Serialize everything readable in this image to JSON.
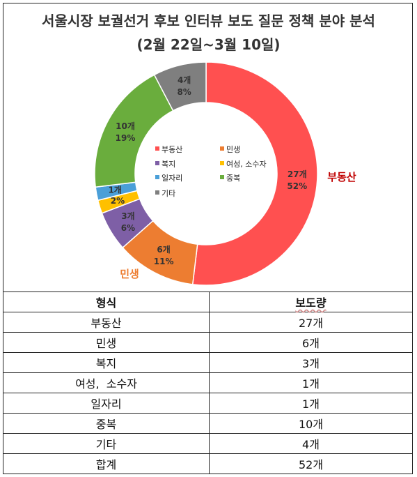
{
  "title_line1": "서울시장 보궐선거 후보 인터뷰 보도 질문 정책 분야 분석",
  "title_line2": "(2월 22일~3월 10일)",
  "chart_data": {
    "type": "pie",
    "title": "서울시장 보궐선거 후보 인터뷰 보도 질문 정책 분야 분석",
    "subtitle": "(2월 22일~3월 10일)",
    "donut": true,
    "slices": [
      {
        "name": "부동산",
        "value": 27,
        "percent": 52,
        "count_label": "27개",
        "pct_label": "52%",
        "color": "#ff5050"
      },
      {
        "name": "민생",
        "value": 6,
        "percent": 11,
        "count_label": "6개",
        "pct_label": "11%",
        "color": "#ed7d31"
      },
      {
        "name": "복지",
        "value": 3,
        "percent": 6,
        "count_label": "3개",
        "pct_label": "6%",
        "color": "#7e5fa6"
      },
      {
        "name": "여성, 소수자",
        "value": 1,
        "percent": 2,
        "count_label": "",
        "pct_label": "2%",
        "color": "#ffc000"
      },
      {
        "name": "일자리",
        "value": 1,
        "percent": 2,
        "count_label": "1개",
        "pct_label": "",
        "color": "#4a9fd8"
      },
      {
        "name": "중복",
        "value": 10,
        "percent": 19,
        "count_label": "10개",
        "pct_label": "19%",
        "color": "#6aad3d"
      },
      {
        "name": "기타",
        "value": 4,
        "percent": 8,
        "count_label": "4개",
        "pct_label": "8%",
        "color": "#7f7f7f"
      }
    ],
    "legend_placement": "center",
    "callouts": [
      {
        "text": "부동산",
        "color": "#c00000"
      },
      {
        "text": "민생",
        "color": "#ed7d31"
      }
    ]
  },
  "table": {
    "headers": [
      "형식",
      "보도량"
    ],
    "rows": [
      [
        "부동산",
        "27개"
      ],
      [
        "민생",
        "6개"
      ],
      [
        "복지",
        "3개"
      ],
      [
        "여성,  소수자",
        "1개"
      ],
      [
        "일자리",
        "1개"
      ],
      [
        "중복",
        "10개"
      ],
      [
        "기타",
        "4개"
      ],
      [
        "합계",
        "52개"
      ]
    ]
  }
}
